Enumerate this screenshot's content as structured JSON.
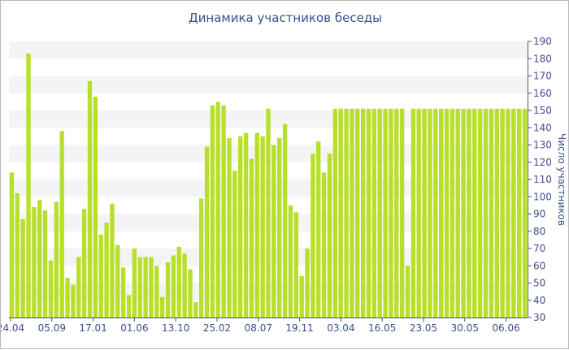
{
  "chart_data": {
    "type": "bar",
    "title": "Динамика участников беседы",
    "ylabel": "Число участников",
    "xlabel": "",
    "ylim": [
      30,
      190
    ],
    "y_ticks": [
      30,
      40,
      50,
      60,
      70,
      80,
      90,
      100,
      110,
      120,
      130,
      140,
      150,
      160,
      170,
      180,
      190
    ],
    "y_axis_side": "right",
    "x_tick_labels": [
      "24.04",
      "05.09",
      "17.01",
      "01.06",
      "13.10",
      "25.02",
      "08.07",
      "19.11",
      "03.04",
      "16.05",
      "23.05",
      "30.05",
      "06.06"
    ],
    "grid": "horizontal alternating bands",
    "colors": {
      "bar": "#b8df2a",
      "band": "#f4f4f4",
      "axis": "#3a4f8a"
    },
    "values": [
      114,
      102,
      87,
      183,
      94,
      98,
      92,
      63,
      97,
      138,
      53,
      49,
      65,
      93,
      167,
      158,
      78,
      85,
      96,
      72,
      59,
      43,
      70,
      65,
      65,
      65,
      60,
      42,
      62,
      66,
      71,
      67,
      58,
      39,
      99,
      129,
      153,
      155,
      153,
      134,
      115,
      135,
      137,
      122,
      137,
      135,
      151,
      130,
      134,
      142,
      95,
      91,
      54,
      70,
      125,
      132,
      114,
      125,
      151,
      151,
      151,
      151,
      151,
      151,
      151,
      151,
      151,
      151,
      151,
      151,
      151,
      60,
      151,
      151,
      151,
      151,
      151,
      151,
      151,
      151,
      151,
      151,
      151,
      151,
      151,
      151,
      151,
      151,
      151,
      151,
      151,
      151,
      151
    ]
  }
}
